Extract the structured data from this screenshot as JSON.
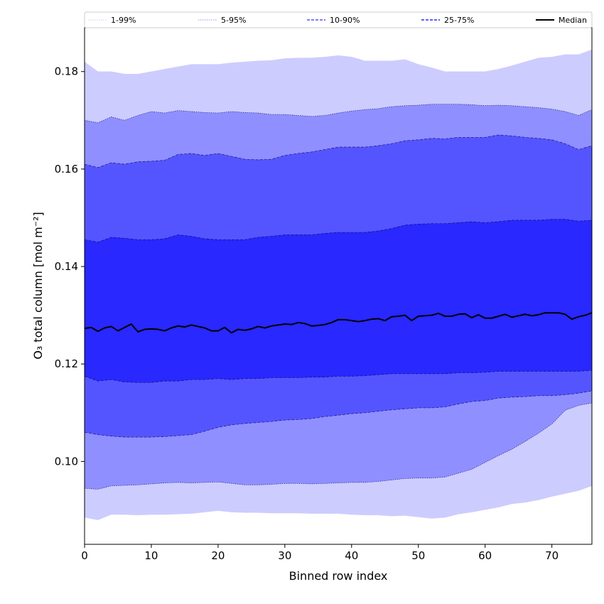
{
  "chart_data": {
    "type": "area",
    "title": "",
    "xlabel": "Binned row index",
    "ylabel": "O₃ total column [mol m⁻²]",
    "xlim": [
      0,
      76
    ],
    "ylim": [
      0.083,
      0.189
    ],
    "x_ticks": [
      0,
      10,
      20,
      30,
      40,
      50,
      60,
      70
    ],
    "x_tick_labels": [
      "0",
      "10",
      "20",
      "30",
      "40",
      "50",
      "60",
      "70"
    ],
    "y_ticks": [
      0.1,
      0.12,
      0.14,
      0.16,
      0.18
    ],
    "y_tick_labels": [
      "0.10",
      "0.12",
      "0.14",
      "0.16",
      "0.18"
    ],
    "grid": false,
    "legend_position": "top",
    "band_anchor_x": [
      0,
      2,
      4,
      6,
      8,
      10,
      12,
      14,
      16,
      18,
      20,
      22,
      24,
      26,
      28,
      30,
      32,
      34,
      36,
      38,
      40,
      42,
      44,
      46,
      48,
      50,
      52,
      54,
      56,
      58,
      60,
      62,
      64,
      66,
      68,
      70,
      72,
      74,
      76
    ],
    "bands": [
      {
        "name": "1-99%",
        "color": "#ccccff",
        "lower": [
          0.0885,
          0.088,
          0.0891,
          0.0891,
          0.089,
          0.0891,
          0.0891,
          0.0892,
          0.0893,
          0.0896,
          0.0899,
          0.0896,
          0.0895,
          0.0895,
          0.0894,
          0.0894,
          0.0894,
          0.0893,
          0.0893,
          0.0893,
          0.0891,
          0.089,
          0.089,
          0.0888,
          0.0889,
          0.0886,
          0.0883,
          0.0885,
          0.0892,
          0.0896,
          0.0901,
          0.0906,
          0.0913,
          0.0916,
          0.0921,
          0.0928,
          0.0934,
          0.094,
          0.095
        ],
        "upper": [
          0.182,
          0.18,
          0.18,
          0.1795,
          0.1795,
          0.18,
          0.1805,
          0.181,
          0.1815,
          0.1815,
          0.1815,
          0.1818,
          0.182,
          0.1822,
          0.1823,
          0.1827,
          0.1828,
          0.1828,
          0.183,
          0.1833,
          0.183,
          0.1822,
          0.1822,
          0.1822,
          0.1825,
          0.1815,
          0.1808,
          0.18,
          0.18,
          0.18,
          0.18,
          0.1805,
          0.1812,
          0.182,
          0.1828,
          0.183,
          0.1835,
          0.1835,
          0.1845
        ]
      },
      {
        "name": "5-95%",
        "color": "#8f8fff",
        "lower": [
          0.0945,
          0.0943,
          0.095,
          0.0951,
          0.0952,
          0.0954,
          0.0956,
          0.0957,
          0.0956,
          0.0957,
          0.0958,
          0.0955,
          0.0952,
          0.0952,
          0.0953,
          0.0955,
          0.0955,
          0.0954,
          0.0955,
          0.0956,
          0.0957,
          0.0957,
          0.0959,
          0.0962,
          0.0965,
          0.0966,
          0.0966,
          0.0968,
          0.0976,
          0.0984,
          0.0998,
          0.1012,
          0.1025,
          0.1041,
          0.1058,
          0.1077,
          0.1105,
          0.1115,
          0.112
        ],
        "upper": [
          0.17,
          0.1695,
          0.1707,
          0.17,
          0.171,
          0.1718,
          0.1715,
          0.172,
          0.1718,
          0.1716,
          0.1715,
          0.1718,
          0.1716,
          0.1715,
          0.1712,
          0.1712,
          0.171,
          0.1708,
          0.171,
          0.1715,
          0.1719,
          0.1722,
          0.1724,
          0.1728,
          0.173,
          0.1731,
          0.1733,
          0.1733,
          0.1733,
          0.1732,
          0.173,
          0.1731,
          0.173,
          0.1728,
          0.1726,
          0.1723,
          0.1718,
          0.171,
          0.1722
        ]
      },
      {
        "name": "10-90%",
        "color": "#5555ff",
        "lower": [
          0.106,
          0.1055,
          0.1052,
          0.105,
          0.105,
          0.105,
          0.1051,
          0.1053,
          0.1055,
          0.1062,
          0.107,
          0.1075,
          0.1078,
          0.108,
          0.1082,
          0.1085,
          0.1086,
          0.1088,
          0.1092,
          0.1095,
          0.1098,
          0.11,
          0.1103,
          0.1106,
          0.1108,
          0.111,
          0.111,
          0.1112,
          0.1118,
          0.1123,
          0.1125,
          0.113,
          0.1132,
          0.1133,
          0.1135,
          0.1135,
          0.1137,
          0.114,
          0.1145
        ],
        "upper": [
          0.161,
          0.1603,
          0.1613,
          0.161,
          0.1615,
          0.1616,
          0.1618,
          0.163,
          0.1632,
          0.1628,
          0.1632,
          0.1626,
          0.162,
          0.1619,
          0.162,
          0.1628,
          0.1632,
          0.1635,
          0.164,
          0.1645,
          0.1645,
          0.1645,
          0.1648,
          0.1652,
          0.1658,
          0.166,
          0.1663,
          0.1662,
          0.1665,
          0.1665,
          0.1665,
          0.167,
          0.1668,
          0.1665,
          0.1663,
          0.166,
          0.1652,
          0.164,
          0.1648
        ]
      },
      {
        "name": "25-75%",
        "color": "#2828ff",
        "lower": [
          0.1175,
          0.1165,
          0.1168,
          0.1163,
          0.1162,
          0.1162,
          0.1165,
          0.1165,
          0.1168,
          0.1168,
          0.117,
          0.1168,
          0.117,
          0.117,
          0.1172,
          0.1172,
          0.1172,
          0.1173,
          0.1173,
          0.1175,
          0.1175,
          0.1176,
          0.1178,
          0.118,
          0.118,
          0.118,
          0.118,
          0.118,
          0.1182,
          0.1182,
          0.1183,
          0.1185,
          0.1185,
          0.1185,
          0.1185,
          0.1185,
          0.1185,
          0.1185,
          0.1187
        ],
        "upper": [
          0.1455,
          0.145,
          0.146,
          0.1458,
          0.1455,
          0.1455,
          0.1457,
          0.1465,
          0.1462,
          0.1457,
          0.1455,
          0.1455,
          0.1455,
          0.146,
          0.1462,
          0.1465,
          0.1465,
          0.1465,
          0.1468,
          0.147,
          0.147,
          0.147,
          0.1473,
          0.1478,
          0.1485,
          0.1487,
          0.1488,
          0.1488,
          0.149,
          0.1492,
          0.149,
          0.1492,
          0.1495,
          0.1495,
          0.1495,
          0.1497,
          0.1497,
          0.1493,
          0.1495
        ]
      }
    ],
    "median": {
      "name": "Median",
      "color": "#000000",
      "x": [
        0,
        1,
        2,
        3,
        4,
        5,
        6,
        7,
        8,
        9,
        10,
        11,
        12,
        13,
        14,
        15,
        16,
        17,
        18,
        19,
        20,
        21,
        22,
        23,
        24,
        25,
        26,
        27,
        28,
        29,
        30,
        31,
        32,
        33,
        34,
        35,
        36,
        37,
        38,
        39,
        40,
        41,
        42,
        43,
        44,
        45,
        46,
        47,
        48,
        49,
        50,
        51,
        52,
        53,
        54,
        55,
        56,
        57,
        58,
        59,
        60,
        61,
        62,
        63,
        64,
        65,
        66,
        67,
        68,
        69,
        70,
        71,
        72,
        73,
        74,
        75,
        76
      ],
      "values": [
        0.1273,
        0.1275,
        0.1267,
        0.1274,
        0.1277,
        0.1268,
        0.1275,
        0.1282,
        0.1266,
        0.1271,
        0.1272,
        0.1271,
        0.1268,
        0.1274,
        0.1278,
        0.1276,
        0.128,
        0.1277,
        0.1274,
        0.1268,
        0.1268,
        0.1275,
        0.1264,
        0.1271,
        0.1269,
        0.1272,
        0.1277,
        0.1274,
        0.1278,
        0.128,
        0.1282,
        0.1281,
        0.1285,
        0.1283,
        0.1278,
        0.1279,
        0.1281,
        0.1285,
        0.1291,
        0.1291,
        0.1289,
        0.1287,
        0.1289,
        0.1292,
        0.1293,
        0.1289,
        0.1297,
        0.1298,
        0.13,
        0.1289,
        0.1298,
        0.1299,
        0.13,
        0.1304,
        0.1298,
        0.1298,
        0.1302,
        0.1303,
        0.1295,
        0.1301,
        0.1294,
        0.1294,
        0.1298,
        0.1302,
        0.1296,
        0.1299,
        0.1302,
        0.1299,
        0.1301,
        0.1305,
        0.1305,
        0.1305,
        0.1302,
        0.1292,
        0.1297,
        0.13,
        0.1305
      ]
    },
    "legend": [
      {
        "label": "1-99%",
        "color": "#ccccff",
        "style": "dotted"
      },
      {
        "label": "5-95%",
        "color": "#8f8fff",
        "style": "dotted"
      },
      {
        "label": "10-90%",
        "color": "#5555ff",
        "style": "dashed"
      },
      {
        "label": "25-75%",
        "color": "#2828ff",
        "style": "dashed"
      },
      {
        "label": "Median",
        "color": "#000000",
        "style": "solid"
      }
    ]
  }
}
